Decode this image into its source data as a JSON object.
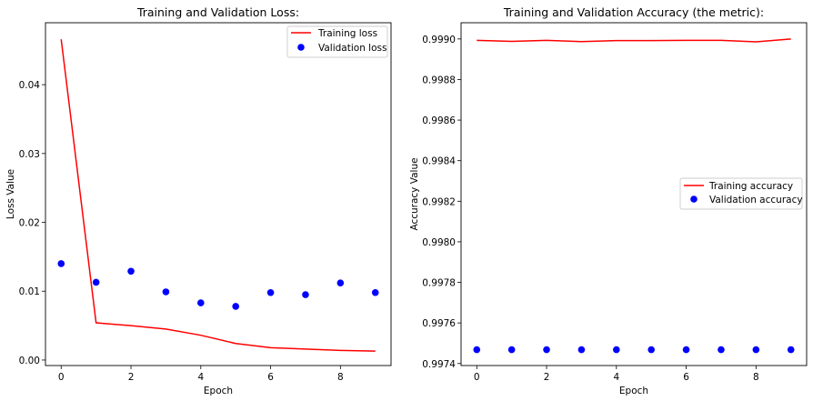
{
  "chart_data": [
    {
      "type": "line",
      "title": "Training and Validation Loss:",
      "xlabel": "Epoch",
      "ylabel": "Loss Value",
      "xlim": [
        -0.45,
        9.45
      ],
      "ylim": [
        -0.0008,
        0.049
      ],
      "xticks": [
        0,
        2,
        4,
        6,
        8
      ],
      "xtick_labels": [
        "0",
        "2",
        "4",
        "6",
        "8"
      ],
      "yticks": [
        0.0,
        0.01,
        0.02,
        0.03,
        0.04
      ],
      "ytick_labels": [
        "0.00",
        "0.01",
        "0.02",
        "0.03",
        "0.04"
      ],
      "x": [
        0,
        1,
        2,
        3,
        4,
        5,
        6,
        7,
        8,
        9
      ],
      "series": [
        {
          "name": "Training loss",
          "style": "line",
          "color": "#ff0000",
          "values": [
            0.0466,
            0.0054,
            0.005,
            0.0045,
            0.0036,
            0.0024,
            0.0018,
            0.0016,
            0.0014,
            0.0013
          ]
        },
        {
          "name": "Validation loss",
          "style": "marker",
          "color": "#0000ff",
          "values": [
            0.014,
            0.0113,
            0.0129,
            0.0099,
            0.0083,
            0.0078,
            0.0098,
            0.0095,
            0.0112,
            0.0098
          ]
        }
      ],
      "legend": "top-right",
      "grid": false
    },
    {
      "type": "line",
      "title": "Training and Validation Accuracy (the metric):",
      "xlabel": "Epoch",
      "ylabel": "Accuracy Value",
      "xlim": [
        -0.45,
        9.45
      ],
      "ylim": [
        0.99739,
        0.99908
      ],
      "xticks": [
        0,
        2,
        4,
        6,
        8
      ],
      "xtick_labels": [
        "0",
        "2",
        "4",
        "6",
        "8"
      ],
      "yticks": [
        0.9974,
        0.9976,
        0.9978,
        0.998,
        0.9982,
        0.9984,
        0.9986,
        0.9988,
        0.999
      ],
      "ytick_labels": [
        "0.9974",
        "0.9976",
        "0.9978",
        "0.9980",
        "0.9982",
        "0.9984",
        "0.9986",
        "0.9988",
        "0.9990"
      ],
      "x": [
        0,
        1,
        2,
        3,
        4,
        5,
        6,
        7,
        8,
        9
      ],
      "series": [
        {
          "name": "Training accuracy",
          "style": "line",
          "color": "#ff0000",
          "values": [
            0.998993,
            0.998988,
            0.998993,
            0.998987,
            0.998992,
            0.998992,
            0.998993,
            0.998993,
            0.998986,
            0.999
          ]
        },
        {
          "name": "Validation accuracy",
          "style": "marker",
          "color": "#0000ff",
          "values": [
            0.997468,
            0.997468,
            0.997468,
            0.997468,
            0.997468,
            0.997468,
            0.997468,
            0.997468,
            0.997468,
            0.997468
          ]
        }
      ],
      "legend": "center-right",
      "grid": false
    }
  ]
}
